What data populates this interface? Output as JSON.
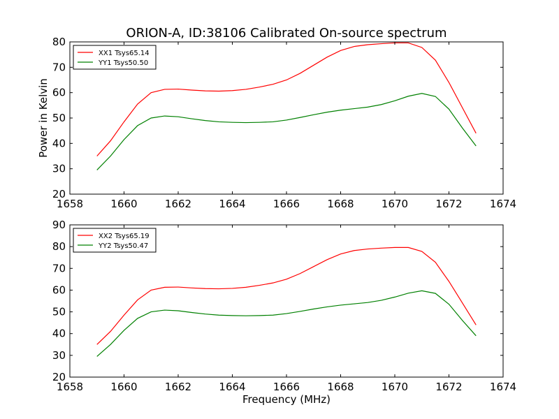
{
  "title": "ORION-A, ID:38106 Calibrated On-source spectrum",
  "colors": {
    "xx": "#ff0000",
    "yy": "#008000"
  },
  "chart_data": [
    {
      "type": "line",
      "title": "ORION-A, ID:38106 Calibrated On-source spectrum",
      "xlabel": "",
      "ylabel": "Power in Kelvin",
      "xlim": [
        1658,
        1674
      ],
      "ylim": [
        20,
        80
      ],
      "xticks": [
        1658,
        1660,
        1662,
        1664,
        1666,
        1668,
        1670,
        1672,
        1674
      ],
      "yticks": [
        20,
        30,
        40,
        50,
        60,
        70,
        80
      ],
      "legend_position": "top-left",
      "grid": false,
      "series": [
        {
          "name": "XX1 Tsys65.14",
          "color": "#ff0000",
          "x": [
            1659.0,
            1659.5,
            1660.0,
            1660.5,
            1661.0,
            1661.5,
            1662.0,
            1662.5,
            1663.0,
            1663.5,
            1664.0,
            1664.5,
            1665.0,
            1665.5,
            1666.0,
            1666.5,
            1667.0,
            1667.5,
            1668.0,
            1668.5,
            1669.0,
            1669.5,
            1670.0,
            1670.5,
            1671.0,
            1671.5,
            1672.0,
            1672.5,
            1673.0
          ],
          "values": [
            35.0,
            41.0,
            48.5,
            55.5,
            60.0,
            61.3,
            61.4,
            61.0,
            60.7,
            60.6,
            60.8,
            61.3,
            62.2,
            63.3,
            65.0,
            67.6,
            70.8,
            74.0,
            76.6,
            78.2,
            78.9,
            79.3,
            79.6,
            79.6,
            77.8,
            72.8,
            64.0,
            54.0,
            44.0
          ]
        },
        {
          "name": "YY1 Tsys50.50",
          "color": "#008000",
          "x": [
            1659.0,
            1659.5,
            1660.0,
            1660.5,
            1661.0,
            1661.5,
            1662.0,
            1662.5,
            1663.0,
            1663.5,
            1664.0,
            1664.5,
            1665.0,
            1665.5,
            1666.0,
            1666.5,
            1667.0,
            1667.5,
            1668.0,
            1668.5,
            1669.0,
            1669.5,
            1670.0,
            1670.5,
            1671.0,
            1671.5,
            1672.0,
            1672.5,
            1673.0
          ],
          "values": [
            29.5,
            35.0,
            41.5,
            47.0,
            50.0,
            50.8,
            50.5,
            49.7,
            49.0,
            48.5,
            48.3,
            48.2,
            48.3,
            48.5,
            49.2,
            50.2,
            51.3,
            52.3,
            53.1,
            53.7,
            54.3,
            55.3,
            56.8,
            58.6,
            59.7,
            58.5,
            53.5,
            46.0,
            39.0
          ]
        }
      ]
    },
    {
      "type": "line",
      "title": "",
      "xlabel": "Frequency (MHz)",
      "ylabel": "",
      "xlim": [
        1658,
        1674
      ],
      "ylim": [
        20,
        90
      ],
      "xticks": [
        1658,
        1660,
        1662,
        1664,
        1666,
        1668,
        1670,
        1672,
        1674
      ],
      "yticks": [
        20,
        30,
        40,
        50,
        60,
        70,
        80,
        90
      ],
      "legend_position": "top-left",
      "grid": false,
      "series": [
        {
          "name": "XX2 Tsys65.19",
          "color": "#ff0000",
          "x": [
            1659.0,
            1659.5,
            1660.0,
            1660.5,
            1661.0,
            1661.5,
            1662.0,
            1662.5,
            1663.0,
            1663.5,
            1664.0,
            1664.5,
            1665.0,
            1665.5,
            1666.0,
            1666.5,
            1667.0,
            1667.5,
            1668.0,
            1668.5,
            1669.0,
            1669.5,
            1670.0,
            1670.5,
            1671.0,
            1671.5,
            1672.0,
            1672.5,
            1673.0
          ],
          "values": [
            35.0,
            41.0,
            48.5,
            55.5,
            60.0,
            61.3,
            61.4,
            61.0,
            60.7,
            60.6,
            60.8,
            61.3,
            62.2,
            63.3,
            65.0,
            67.6,
            70.8,
            74.0,
            76.6,
            78.2,
            78.9,
            79.3,
            79.6,
            79.6,
            77.8,
            72.8,
            64.0,
            54.0,
            44.0
          ]
        },
        {
          "name": "YY2 Tsys50.47",
          "color": "#008000",
          "x": [
            1659.0,
            1659.5,
            1660.0,
            1660.5,
            1661.0,
            1661.5,
            1662.0,
            1662.5,
            1663.0,
            1663.5,
            1664.0,
            1664.5,
            1665.0,
            1665.5,
            1666.0,
            1666.5,
            1667.0,
            1667.5,
            1668.0,
            1668.5,
            1669.0,
            1669.5,
            1670.0,
            1670.5,
            1671.0,
            1671.5,
            1672.0,
            1672.5,
            1673.0
          ],
          "values": [
            29.5,
            35.0,
            41.5,
            47.0,
            50.0,
            50.8,
            50.5,
            49.7,
            49.0,
            48.5,
            48.3,
            48.2,
            48.3,
            48.5,
            49.2,
            50.2,
            51.3,
            52.3,
            53.1,
            53.7,
            54.3,
            55.3,
            56.8,
            58.6,
            59.7,
            58.5,
            53.5,
            46.0,
            39.0
          ]
        }
      ]
    }
  ]
}
